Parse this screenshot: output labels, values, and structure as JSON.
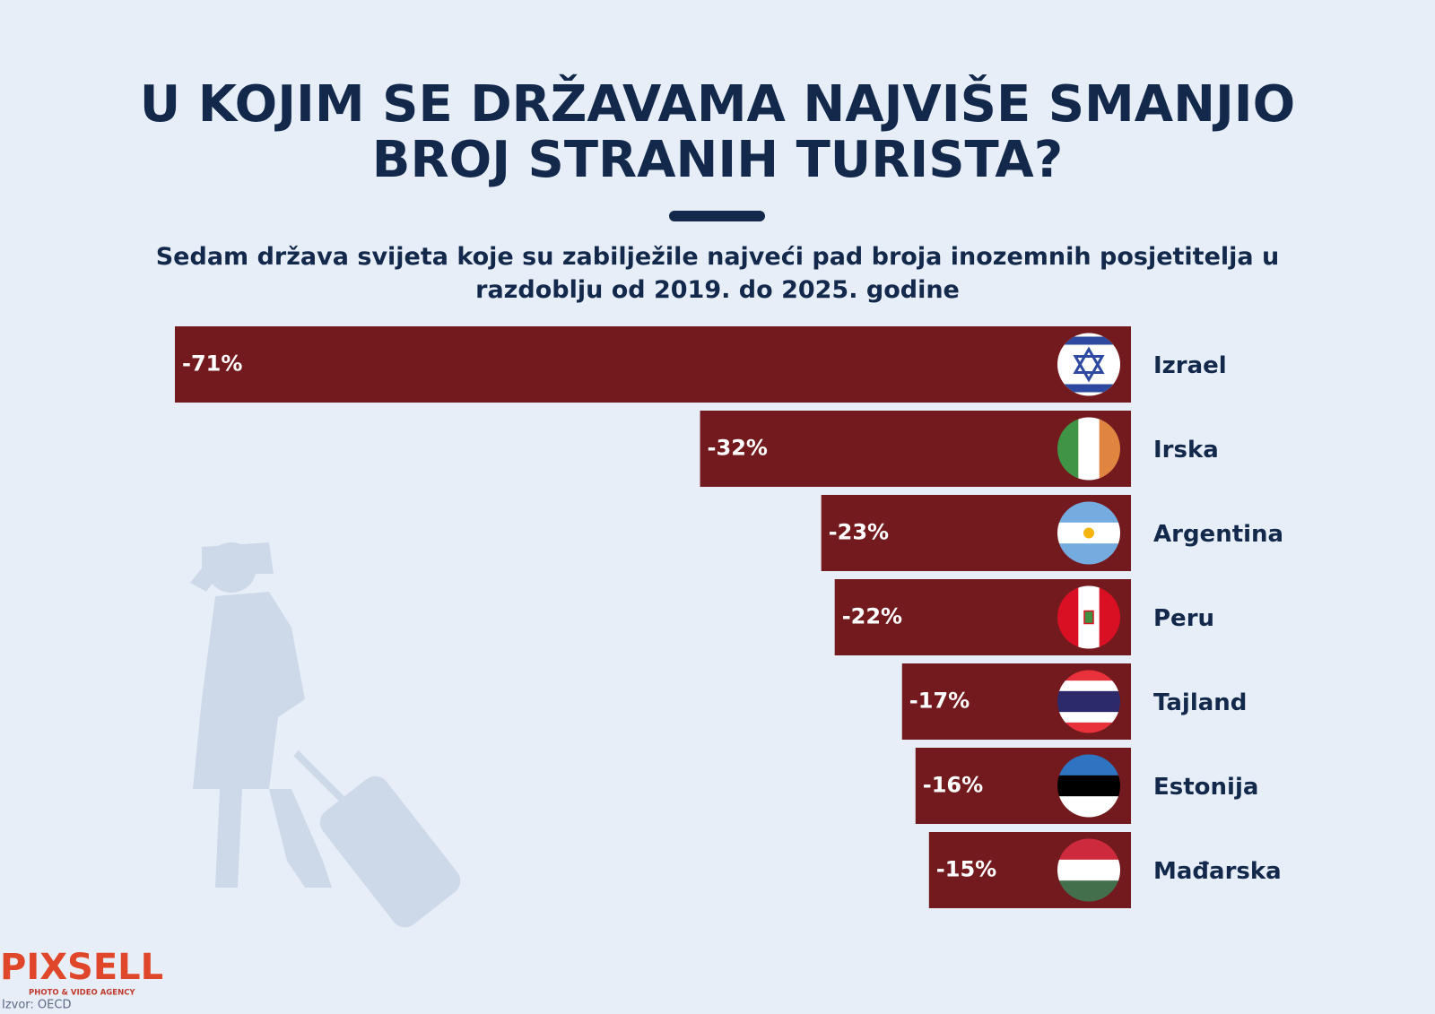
{
  "chart_data": {
    "type": "bar",
    "title": "U KOJIM SE DRŽAVAMA NAJVIŠE SMANJIO BROJ STRANIH TURISTA?",
    "subtitle": "Sedam država svijeta koje su zabilježile najveći pad broja inozemnih posjetitelja u razdoblju od 2019. do 2025. godine",
    "categories": [
      "Izrael",
      "Irska",
      "Argentina",
      "Peru",
      "Tajland",
      "Estonija",
      "Mađarska"
    ],
    "values": [
      -71,
      -32,
      -23,
      -22,
      -17,
      -16,
      -15
    ],
    "value_labels": [
      "-71%",
      "-32%",
      "-23%",
      "-22%",
      "-17%",
      "-16%",
      "-15%"
    ],
    "color": "#731a1e",
    "logo": {
      "name": "PIXSELL",
      "tagline": "PHOTO & VIDEO AGENCY"
    },
    "source": "Izvor: OECD"
  }
}
